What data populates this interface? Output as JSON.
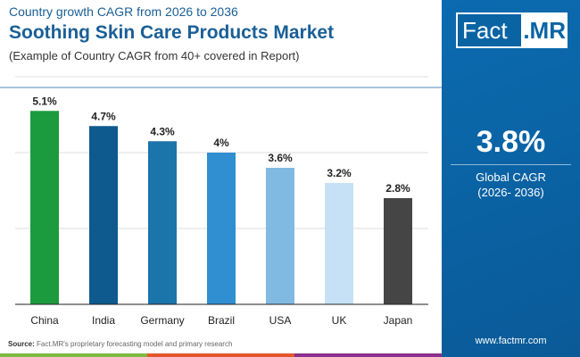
{
  "header": {
    "subtitle": "Country growth CAGR from 2026 to 2036",
    "title": "Soothing Skin Care Products Market",
    "note": "(Example of Country CAGR from 40+ covered in Report)"
  },
  "panel": {
    "logo_left": "Fact",
    "logo_right": ".MR",
    "value": "3.8%",
    "label1": "Global CAGR",
    "label2": "(2026- 2036)",
    "website": "www.factmr.com"
  },
  "footer": {
    "source_label": "Source:",
    "source_text": " Fact.MR's proprietary forecasting model and primary research",
    "strip_colors": [
      "#7dba43",
      "#e4572e",
      "#8a2f8c"
    ]
  },
  "chart_data": {
    "type": "bar",
    "categories": [
      "China",
      "India",
      "Germany",
      "Brazil",
      "USA",
      "UK",
      "Japan"
    ],
    "values": [
      5.1,
      4.7,
      4.3,
      4.0,
      3.6,
      3.2,
      2.8
    ],
    "labels": [
      "5.1%",
      "4.7%",
      "4.3%",
      "4%",
      "3.6%",
      "3.2%",
      "2.8%"
    ],
    "colors": [
      "#1c9b3e",
      "#0e5a8e",
      "#1b74aa",
      "#2f8fd1",
      "#80bae2",
      "#c6e1f5",
      "#454545"
    ],
    "ylim": [
      0,
      6
    ],
    "grid": true
  }
}
